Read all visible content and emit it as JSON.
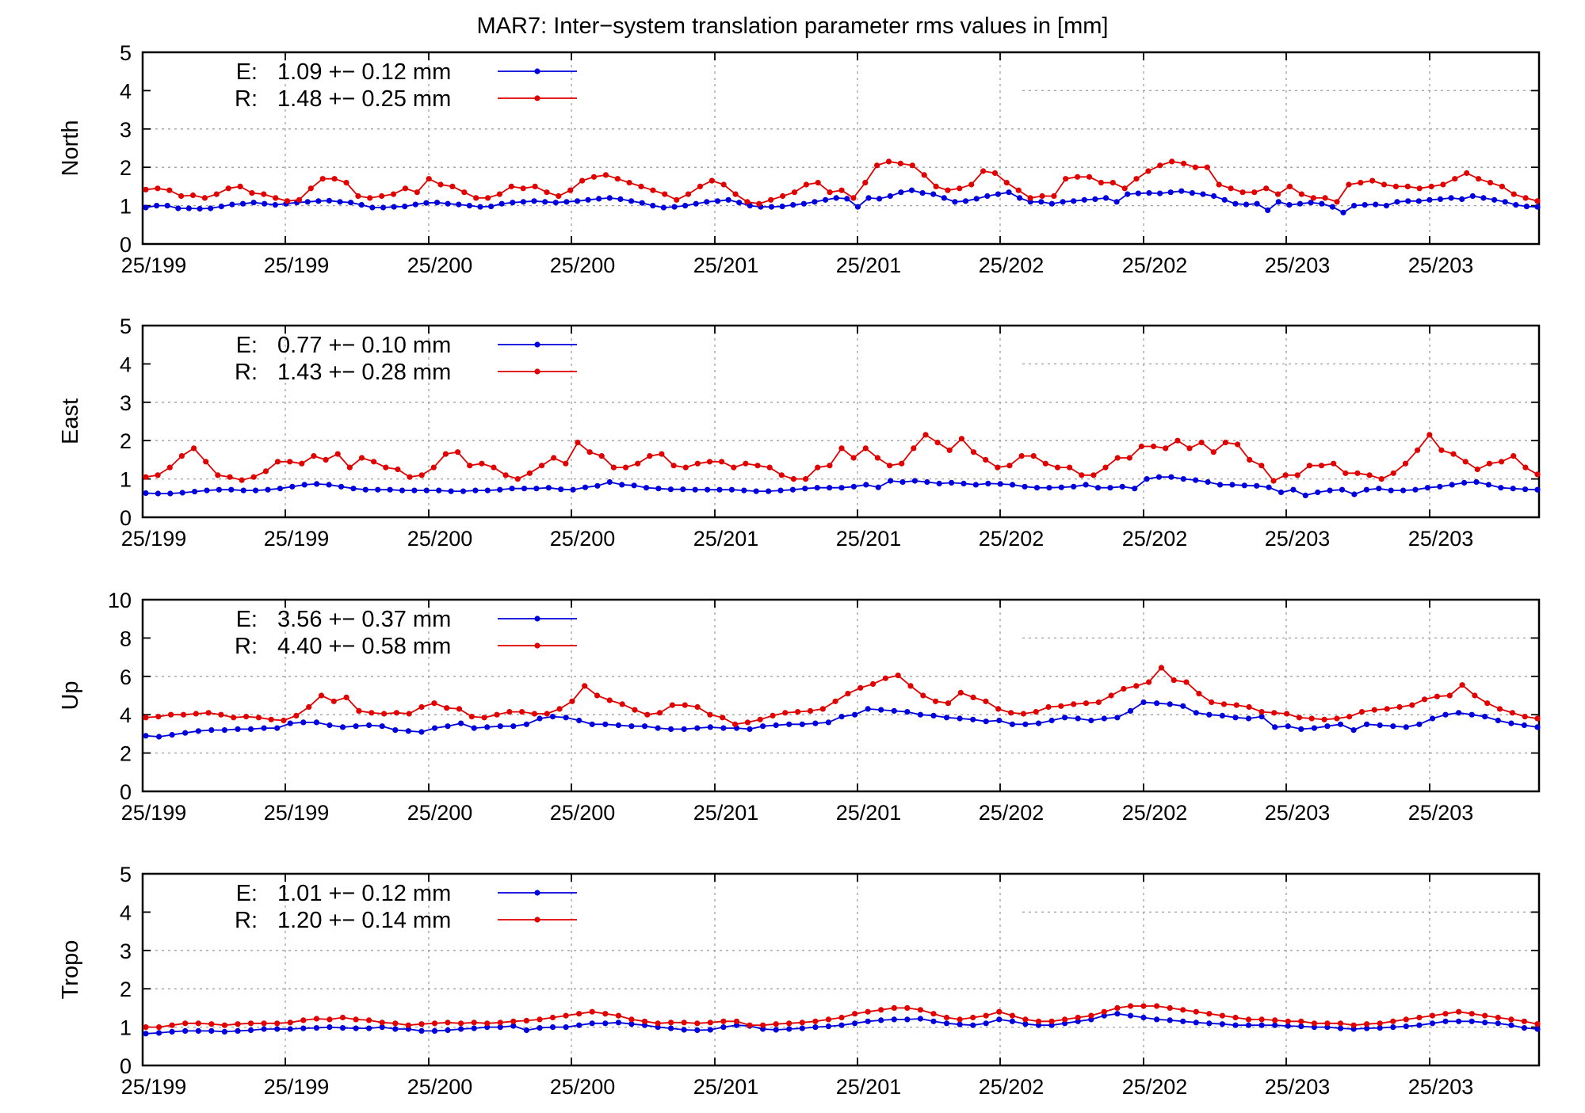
{
  "title": "MAR7: Inter−system translation parameter rms values in [mm]",
  "colors": {
    "E": "#0000dd",
    "R": "#e00000",
    "grid": "#a0a0a0"
  },
  "x_tick_labels": [
    "25/199",
    "25/199",
    "25/200",
    "25/200",
    "25/201",
    "25/201",
    "25/202",
    "25/202",
    "25/203",
    "25/203"
  ],
  "chart_data": [
    {
      "type": "line",
      "ylabel": "North",
      "ylim": [
        0,
        5
      ],
      "yticks": [
        0,
        1,
        2,
        3,
        4,
        5
      ],
      "grid": true,
      "legend_placement": "top-left",
      "series": [
        {
          "name": "E",
          "label": "1.09 +− 0.12 mm",
          "color": "#0000dd",
          "values": [
            0.95,
            1.0,
            1.0,
            0.93,
            0.93,
            0.92,
            0.93,
            0.98,
            1.03,
            1.05,
            1.08,
            1.05,
            1.02,
            1.05,
            1.08,
            1.1,
            1.12,
            1.13,
            1.1,
            1.08,
            1.02,
            0.95,
            0.95,
            0.97,
            0.98,
            1.03,
            1.07,
            1.08,
            1.05,
            1.03,
            1.0,
            0.97,
            0.98,
            1.05,
            1.08,
            1.1,
            1.12,
            1.1,
            1.08,
            1.1,
            1.12,
            1.15,
            1.18,
            1.2,
            1.17,
            1.12,
            1.07,
            1.0,
            0.95,
            0.97,
            1.0,
            1.05,
            1.1,
            1.12,
            1.15,
            1.08,
            1.0,
            0.97,
            0.97,
            0.98,
            1.02,
            1.05,
            1.1,
            1.15,
            1.2,
            1.18,
            0.97,
            1.2,
            1.18,
            1.25,
            1.35,
            1.4,
            1.33,
            1.3,
            1.2,
            1.1,
            1.12,
            1.18,
            1.25,
            1.3,
            1.35,
            1.2,
            1.1,
            1.1,
            1.05,
            1.1,
            1.12,
            1.15,
            1.17,
            1.2,
            1.1,
            1.3,
            1.32,
            1.33,
            1.32,
            1.35,
            1.38,
            1.33,
            1.3,
            1.25,
            1.15,
            1.05,
            1.03,
            1.05,
            0.88,
            1.1,
            1.02,
            1.05,
            1.08,
            1.05,
            0.97,
            0.82,
            1.0,
            1.02,
            1.03,
            1.0,
            1.1,
            1.12,
            1.12,
            1.15,
            1.17,
            1.2,
            1.17,
            1.25,
            1.2,
            1.15,
            1.1,
            1.02,
            0.98,
            0.97
          ]
        },
        {
          "name": "R",
          "label": "1.48 +− 0.25 mm",
          "color": "#e00000",
          "values": [
            1.42,
            1.45,
            1.4,
            1.25,
            1.27,
            1.2,
            1.3,
            1.45,
            1.5,
            1.33,
            1.3,
            1.2,
            1.12,
            1.15,
            1.45,
            1.7,
            1.7,
            1.6,
            1.25,
            1.2,
            1.25,
            1.3,
            1.45,
            1.35,
            1.7,
            1.55,
            1.5,
            1.35,
            1.2,
            1.2,
            1.3,
            1.5,
            1.45,
            1.5,
            1.35,
            1.25,
            1.4,
            1.65,
            1.75,
            1.8,
            1.7,
            1.6,
            1.5,
            1.4,
            1.3,
            1.15,
            1.3,
            1.5,
            1.65,
            1.55,
            1.3,
            1.1,
            1.05,
            1.15,
            1.25,
            1.35,
            1.55,
            1.6,
            1.35,
            1.4,
            1.2,
            1.6,
            2.05,
            2.15,
            2.1,
            2.05,
            1.8,
            1.5,
            1.4,
            1.45,
            1.55,
            1.9,
            1.85,
            1.6,
            1.4,
            1.2,
            1.25,
            1.25,
            1.7,
            1.75,
            1.75,
            1.6,
            1.6,
            1.45,
            1.7,
            1.9,
            2.05,
            2.15,
            2.1,
            2.0,
            2.0,
            1.55,
            1.45,
            1.35,
            1.35,
            1.45,
            1.3,
            1.5,
            1.3,
            1.2,
            1.2,
            1.1,
            1.55,
            1.6,
            1.65,
            1.55,
            1.5,
            1.5,
            1.45,
            1.5,
            1.55,
            1.7,
            1.85,
            1.7,
            1.6,
            1.5,
            1.3,
            1.2,
            1.12
          ]
        }
      ]
    },
    {
      "type": "line",
      "ylabel": "East",
      "ylim": [
        0,
        5
      ],
      "yticks": [
        0,
        1,
        2,
        3,
        4,
        5
      ],
      "grid": true,
      "legend_placement": "top-left",
      "series": [
        {
          "name": "E",
          "label": "0.77 +− 0.10 mm",
          "color": "#0000dd",
          "values": [
            0.63,
            0.62,
            0.62,
            0.64,
            0.67,
            0.7,
            0.72,
            0.72,
            0.7,
            0.7,
            0.72,
            0.75,
            0.8,
            0.85,
            0.87,
            0.85,
            0.8,
            0.75,
            0.72,
            0.72,
            0.72,
            0.7,
            0.7,
            0.7,
            0.7,
            0.68,
            0.68,
            0.7,
            0.7,
            0.72,
            0.75,
            0.75,
            0.75,
            0.77,
            0.73,
            0.72,
            0.78,
            0.82,
            0.92,
            0.85,
            0.83,
            0.77,
            0.75,
            0.73,
            0.73,
            0.72,
            0.72,
            0.72,
            0.72,
            0.7,
            0.68,
            0.68,
            0.7,
            0.72,
            0.75,
            0.77,
            0.77,
            0.77,
            0.8,
            0.85,
            0.78,
            0.95,
            0.92,
            0.95,
            0.92,
            0.88,
            0.9,
            0.88,
            0.85,
            0.88,
            0.87,
            0.85,
            0.8,
            0.77,
            0.77,
            0.78,
            0.8,
            0.85,
            0.77,
            0.77,
            0.8,
            0.75,
            1.0,
            1.05,
            1.05,
            1.0,
            0.97,
            0.92,
            0.85,
            0.85,
            0.83,
            0.82,
            0.78,
            0.65,
            0.72,
            0.57,
            0.65,
            0.7,
            0.72,
            0.6,
            0.72,
            0.75,
            0.7,
            0.7,
            0.72,
            0.77,
            0.8,
            0.85,
            0.9,
            0.92,
            0.85,
            0.77,
            0.75,
            0.73,
            0.72
          ]
        },
        {
          "name": "R",
          "label": "1.43 +− 0.28 mm",
          "color": "#e00000",
          "values": [
            1.05,
            1.1,
            1.3,
            1.6,
            1.8,
            1.45,
            1.1,
            1.05,
            0.97,
            1.05,
            1.2,
            1.45,
            1.45,
            1.4,
            1.6,
            1.5,
            1.65,
            1.3,
            1.55,
            1.45,
            1.3,
            1.25,
            1.05,
            1.1,
            1.3,
            1.65,
            1.7,
            1.35,
            1.4,
            1.3,
            1.1,
            1.0,
            1.15,
            1.35,
            1.55,
            1.4,
            1.95,
            1.7,
            1.6,
            1.3,
            1.3,
            1.4,
            1.6,
            1.65,
            1.35,
            1.3,
            1.4,
            1.45,
            1.45,
            1.3,
            1.4,
            1.35,
            1.3,
            1.1,
            1.0,
            1.0,
            1.3,
            1.35,
            1.8,
            1.55,
            1.8,
            1.55,
            1.35,
            1.4,
            1.8,
            2.15,
            1.95,
            1.75,
            2.05,
            1.7,
            1.5,
            1.3,
            1.35,
            1.6,
            1.6,
            1.4,
            1.3,
            1.3,
            1.1,
            1.1,
            1.3,
            1.55,
            1.55,
            1.85,
            1.85,
            1.8,
            2.0,
            1.8,
            1.95,
            1.7,
            1.95,
            1.9,
            1.5,
            1.35,
            0.95,
            1.1,
            1.1,
            1.35,
            1.35,
            1.4,
            1.15,
            1.15,
            1.1,
            1.0,
            1.15,
            1.4,
            1.75,
            2.15,
            1.75,
            1.65,
            1.45,
            1.25,
            1.4,
            1.45,
            1.6,
            1.3,
            1.12
          ]
        }
      ]
    },
    {
      "type": "line",
      "ylabel": "Up",
      "ylim": [
        0,
        10
      ],
      "yticks": [
        0,
        2,
        4,
        6,
        8,
        10
      ],
      "grid": true,
      "legend_placement": "top-left",
      "series": [
        {
          "name": "E",
          "label": "3.56 +− 0.37 mm",
          "color": "#0000dd",
          "values": [
            2.9,
            2.85,
            2.95,
            3.05,
            3.15,
            3.2,
            3.2,
            3.25,
            3.25,
            3.3,
            3.3,
            3.55,
            3.6,
            3.6,
            3.45,
            3.35,
            3.4,
            3.45,
            3.4,
            3.2,
            3.15,
            3.1,
            3.3,
            3.4,
            3.55,
            3.3,
            3.35,
            3.4,
            3.4,
            3.5,
            3.8,
            3.9,
            3.85,
            3.7,
            3.5,
            3.5,
            3.45,
            3.4,
            3.4,
            3.3,
            3.25,
            3.25,
            3.3,
            3.35,
            3.3,
            3.3,
            3.25,
            3.4,
            3.45,
            3.5,
            3.5,
            3.55,
            3.6,
            3.9,
            4.0,
            4.3,
            4.25,
            4.2,
            4.15,
            4.0,
            3.95,
            3.85,
            3.8,
            3.75,
            3.65,
            3.7,
            3.5,
            3.5,
            3.55,
            3.7,
            3.85,
            3.8,
            3.7,
            3.8,
            3.85,
            4.2,
            4.65,
            4.6,
            4.55,
            4.45,
            4.1,
            4.0,
            3.95,
            3.85,
            3.8,
            3.9,
            3.35,
            3.4,
            3.25,
            3.3,
            3.4,
            3.5,
            3.2,
            3.5,
            3.45,
            3.4,
            3.35,
            3.5,
            3.8,
            4.0,
            4.1,
            4.0,
            3.9,
            3.7,
            3.55,
            3.45,
            3.35
          ]
        },
        {
          "name": "R",
          "label": "4.40 +− 0.58 mm",
          "color": "#e00000",
          "values": [
            3.85,
            3.9,
            4.0,
            4.0,
            4.05,
            4.1,
            4.0,
            3.85,
            3.9,
            3.85,
            3.75,
            3.7,
            3.95,
            4.4,
            5.0,
            4.7,
            4.9,
            4.2,
            4.1,
            4.05,
            4.1,
            4.05,
            4.4,
            4.6,
            4.35,
            4.3,
            3.9,
            3.85,
            4.0,
            4.15,
            4.15,
            4.05,
            4.05,
            4.3,
            4.7,
            5.5,
            5.0,
            4.75,
            4.55,
            4.25,
            4.0,
            4.1,
            4.5,
            4.5,
            4.4,
            4.0,
            3.85,
            3.5,
            3.6,
            3.75,
            3.95,
            4.1,
            4.15,
            4.2,
            4.3,
            4.7,
            5.1,
            5.4,
            5.6,
            5.9,
            6.05,
            5.5,
            5.0,
            4.7,
            4.6,
            5.15,
            4.9,
            4.7,
            4.3,
            4.1,
            4.05,
            4.15,
            4.4,
            4.45,
            4.55,
            4.6,
            4.65,
            5.0,
            5.35,
            5.5,
            5.7,
            6.45,
            5.8,
            5.7,
            5.1,
            4.65,
            4.55,
            4.5,
            4.4,
            4.15,
            4.1,
            4.05,
            3.85,
            3.8,
            3.75,
            3.8,
            3.9,
            4.15,
            4.25,
            4.3,
            4.4,
            4.5,
            4.8,
            4.95,
            5.0,
            5.55,
            5.0,
            4.6,
            4.3,
            4.1,
            3.9,
            3.8
          ]
        }
      ]
    },
    {
      "type": "line",
      "ylabel": "Tropo",
      "ylim": [
        0,
        5
      ],
      "yticks": [
        0,
        1,
        2,
        3,
        4,
        5
      ],
      "grid": true,
      "legend_placement": "top-left",
      "series": [
        {
          "name": "E",
          "label": "1.01 +− 0.12 mm",
          "color": "#0000dd",
          "values": [
            0.83,
            0.85,
            0.88,
            0.9,
            0.9,
            0.9,
            0.88,
            0.9,
            0.92,
            0.95,
            0.95,
            0.95,
            0.97,
            0.98,
            1.0,
            0.98,
            0.97,
            0.97,
            1.0,
            0.95,
            0.95,
            0.9,
            0.9,
            0.92,
            0.95,
            0.97,
            1.0,
            1.0,
            1.03,
            0.92,
            0.98,
            1.0,
            1.0,
            1.05,
            1.1,
            1.1,
            1.12,
            1.08,
            1.05,
            1.0,
            0.97,
            0.93,
            0.92,
            0.93,
            1.0,
            1.05,
            1.03,
            0.95,
            0.93,
            0.95,
            0.97,
            1.0,
            1.02,
            1.05,
            1.1,
            1.15,
            1.18,
            1.2,
            1.2,
            1.22,
            1.15,
            1.1,
            1.07,
            1.05,
            1.1,
            1.2,
            1.15,
            1.08,
            1.05,
            1.05,
            1.1,
            1.15,
            1.2,
            1.3,
            1.35,
            1.3,
            1.25,
            1.2,
            1.18,
            1.15,
            1.12,
            1.1,
            1.08,
            1.05,
            1.05,
            1.05,
            1.05,
            1.03,
            1.02,
            1.0,
            1.0,
            0.97,
            0.95,
            0.97,
            0.98,
            1.0,
            1.02,
            1.05,
            1.1,
            1.15,
            1.15,
            1.15,
            1.12,
            1.1,
            1.05,
            0.98,
            0.95
          ]
        },
        {
          "name": "R",
          "label": "1.20 +− 0.14 mm",
          "color": "#e00000",
          "values": [
            1.0,
            1.0,
            1.05,
            1.1,
            1.1,
            1.08,
            1.05,
            1.08,
            1.1,
            1.1,
            1.1,
            1.12,
            1.18,
            1.22,
            1.2,
            1.25,
            1.2,
            1.18,
            1.12,
            1.1,
            1.05,
            1.08,
            1.1,
            1.12,
            1.1,
            1.12,
            1.1,
            1.12,
            1.15,
            1.17,
            1.2,
            1.25,
            1.3,
            1.35,
            1.4,
            1.35,
            1.3,
            1.2,
            1.15,
            1.1,
            1.12,
            1.12,
            1.1,
            1.12,
            1.15,
            1.15,
            1.05,
            1.05,
            1.08,
            1.1,
            1.12,
            1.15,
            1.2,
            1.25,
            1.35,
            1.4,
            1.45,
            1.5,
            1.5,
            1.45,
            1.35,
            1.25,
            1.2,
            1.25,
            1.3,
            1.4,
            1.3,
            1.2,
            1.15,
            1.15,
            1.2,
            1.25,
            1.3,
            1.4,
            1.5,
            1.55,
            1.55,
            1.55,
            1.5,
            1.45,
            1.4,
            1.35,
            1.3,
            1.25,
            1.2,
            1.2,
            1.18,
            1.15,
            1.15,
            1.1,
            1.1,
            1.1,
            1.05,
            1.08,
            1.1,
            1.15,
            1.2,
            1.25,
            1.3,
            1.35,
            1.4,
            1.35,
            1.3,
            1.25,
            1.2,
            1.15,
            1.08
          ]
        }
      ]
    }
  ]
}
